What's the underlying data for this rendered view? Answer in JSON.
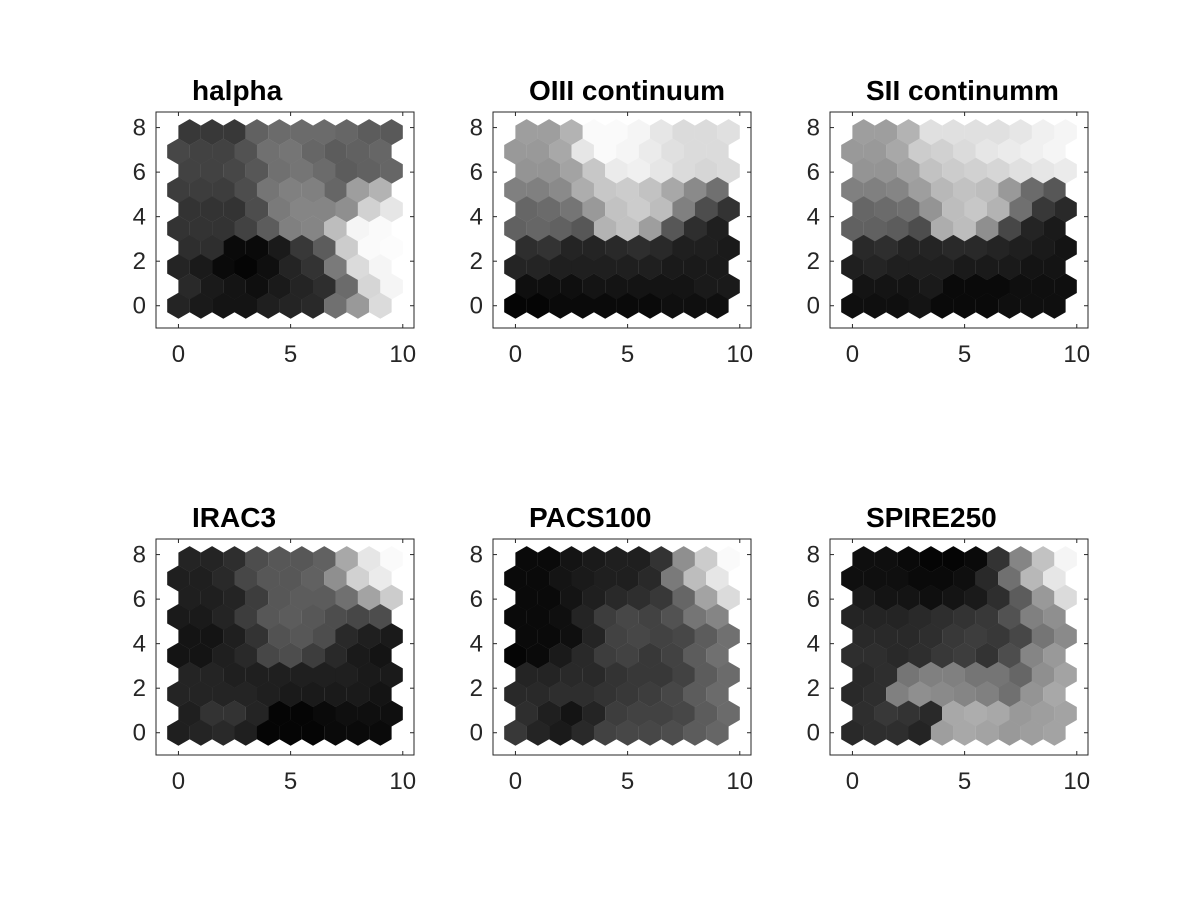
{
  "chart_data": [
    {
      "type": "heatmap",
      "title": "halpha",
      "xlabel": "",
      "ylabel": "",
      "xlim": [
        -1,
        10.5
      ],
      "ylim": [
        -1,
        8.7
      ],
      "x_ticks": [
        0,
        5,
        10
      ],
      "y_ticks": [
        0,
        2,
        4,
        6,
        8
      ],
      "grid": false,
      "cmap": "gray",
      "grid_shape": {
        "cols": 10,
        "rows": 10
      },
      "values": [
        [
          0.22,
          0.22,
          0.22,
          0.38,
          0.42,
          0.42,
          0.42,
          0.4,
          0.36,
          0.35
        ],
        [
          0.28,
          0.26,
          0.26,
          0.32,
          0.44,
          0.46,
          0.4,
          0.36,
          0.38,
          0.4
        ],
        [
          0.26,
          0.26,
          0.28,
          0.34,
          0.44,
          0.46,
          0.42,
          0.36,
          0.38,
          0.4
        ],
        [
          0.24,
          0.24,
          0.24,
          0.3,
          0.46,
          0.5,
          0.5,
          0.4,
          0.62,
          0.7
        ],
        [
          0.2,
          0.2,
          0.2,
          0.3,
          0.48,
          0.52,
          0.52,
          0.56,
          0.82,
          0.9
        ],
        [
          0.2,
          0.2,
          0.2,
          0.26,
          0.36,
          0.5,
          0.52,
          0.74,
          0.96,
          0.98
        ],
        [
          0.18,
          0.18,
          0.04,
          0.04,
          0.1,
          0.22,
          0.36,
          0.8,
          0.98,
          0.99
        ],
        [
          0.14,
          0.1,
          0.04,
          0.02,
          0.06,
          0.14,
          0.2,
          0.48,
          0.86,
          0.96
        ],
        [
          0.16,
          0.1,
          0.08,
          0.06,
          0.1,
          0.14,
          0.18,
          0.42,
          0.84,
          0.96
        ],
        [
          0.14,
          0.1,
          0.08,
          0.08,
          0.12,
          0.14,
          0.16,
          0.44,
          0.6,
          0.86
        ]
      ]
    },
    {
      "type": "heatmap",
      "title": "OIII continuum",
      "xlabel": "",
      "ylabel": "",
      "xlim": [
        -1,
        10.5
      ],
      "ylim": [
        -1,
        8.7
      ],
      "x_ticks": [
        0,
        5,
        10
      ],
      "y_ticks": [
        0,
        2,
        4,
        6,
        8
      ],
      "grid": false,
      "cmap": "gray",
      "grid_shape": {
        "cols": 10,
        "rows": 10
      },
      "values": [
        [
          0.62,
          0.62,
          0.7,
          0.98,
          0.98,
          0.96,
          0.9,
          0.86,
          0.86,
          0.88
        ],
        [
          0.6,
          0.6,
          0.66,
          0.9,
          0.98,
          0.96,
          0.92,
          0.88,
          0.86,
          0.86
        ],
        [
          0.58,
          0.58,
          0.64,
          0.78,
          0.92,
          0.94,
          0.9,
          0.86,
          0.84,
          0.86
        ],
        [
          0.5,
          0.5,
          0.54,
          0.68,
          0.78,
          0.8,
          0.76,
          0.66,
          0.54,
          0.44
        ],
        [
          0.4,
          0.42,
          0.46,
          0.6,
          0.76,
          0.8,
          0.74,
          0.5,
          0.3,
          0.2
        ],
        [
          0.38,
          0.4,
          0.38,
          0.34,
          0.7,
          0.76,
          0.62,
          0.34,
          0.18,
          0.12
        ],
        [
          0.18,
          0.2,
          0.14,
          0.14,
          0.16,
          0.18,
          0.16,
          0.12,
          0.12,
          0.1
        ],
        [
          0.14,
          0.14,
          0.12,
          0.12,
          0.12,
          0.12,
          0.12,
          0.1,
          0.1,
          0.1
        ],
        [
          0.06,
          0.06,
          0.06,
          0.08,
          0.08,
          0.08,
          0.08,
          0.08,
          0.1,
          0.1
        ],
        [
          0.02,
          0.02,
          0.04,
          0.04,
          0.04,
          0.04,
          0.04,
          0.06,
          0.06,
          0.06
        ]
      ]
    },
    {
      "type": "heatmap",
      "title": "SII continumm",
      "xlabel": "",
      "ylabel": "",
      "xlim": [
        -1,
        10.5
      ],
      "ylim": [
        -1,
        8.7
      ],
      "x_ticks": [
        0,
        5,
        10
      ],
      "y_ticks": [
        0,
        2,
        4,
        6,
        8
      ],
      "grid": false,
      "cmap": "gray",
      "grid_shape": {
        "cols": 10,
        "rows": 10
      },
      "values": [
        [
          0.62,
          0.62,
          0.7,
          0.88,
          0.88,
          0.88,
          0.88,
          0.9,
          0.94,
          0.96
        ],
        [
          0.6,
          0.6,
          0.66,
          0.8,
          0.82,
          0.86,
          0.9,
          0.92,
          0.94,
          0.96
        ],
        [
          0.58,
          0.58,
          0.64,
          0.76,
          0.8,
          0.82,
          0.84,
          0.88,
          0.9,
          0.92
        ],
        [
          0.5,
          0.5,
          0.52,
          0.62,
          0.72,
          0.76,
          0.74,
          0.6,
          0.42,
          0.34
        ],
        [
          0.4,
          0.42,
          0.44,
          0.58,
          0.74,
          0.78,
          0.7,
          0.44,
          0.22,
          0.16
        ],
        [
          0.38,
          0.38,
          0.36,
          0.3,
          0.68,
          0.74,
          0.56,
          0.28,
          0.14,
          0.1
        ],
        [
          0.16,
          0.18,
          0.14,
          0.14,
          0.16,
          0.16,
          0.14,
          0.12,
          0.1,
          0.08
        ],
        [
          0.12,
          0.14,
          0.12,
          0.12,
          0.12,
          0.1,
          0.1,
          0.1,
          0.08,
          0.08
        ],
        [
          0.08,
          0.08,
          0.08,
          0.1,
          0.04,
          0.04,
          0.04,
          0.06,
          0.06,
          0.06
        ],
        [
          0.06,
          0.06,
          0.06,
          0.08,
          0.04,
          0.04,
          0.04,
          0.06,
          0.06,
          0.06
        ]
      ]
    },
    {
      "type": "heatmap",
      "title": "IRAC3",
      "xlabel": "",
      "ylabel": "",
      "xlim": [
        -1,
        10.5
      ],
      "ylim": [
        -1,
        8.7
      ],
      "x_ticks": [
        0,
        5,
        10
      ],
      "y_ticks": [
        0,
        2,
        4,
        6,
        8
      ],
      "grid": false,
      "cmap": "gray",
      "grid_shape": {
        "cols": 10,
        "rows": 10
      },
      "values": [
        [
          0.14,
          0.14,
          0.18,
          0.3,
          0.34,
          0.34,
          0.38,
          0.66,
          0.9,
          0.98
        ],
        [
          0.12,
          0.12,
          0.16,
          0.28,
          0.34,
          0.34,
          0.38,
          0.56,
          0.82,
          0.92
        ],
        [
          0.12,
          0.12,
          0.14,
          0.24,
          0.34,
          0.36,
          0.36,
          0.44,
          0.64,
          0.8
        ],
        [
          0.1,
          0.1,
          0.14,
          0.24,
          0.34,
          0.36,
          0.34,
          0.3,
          0.28,
          0.3
        ],
        [
          0.08,
          0.08,
          0.12,
          0.2,
          0.32,
          0.34,
          0.3,
          0.16,
          0.12,
          0.1
        ],
        [
          0.08,
          0.08,
          0.12,
          0.16,
          0.28,
          0.3,
          0.24,
          0.16,
          0.1,
          0.08
        ],
        [
          0.14,
          0.14,
          0.12,
          0.12,
          0.12,
          0.12,
          0.12,
          0.12,
          0.1,
          0.1
        ],
        [
          0.14,
          0.14,
          0.14,
          0.14,
          0.12,
          0.1,
          0.1,
          0.1,
          0.1,
          0.08
        ],
        [
          0.12,
          0.2,
          0.2,
          0.14,
          0.02,
          0.02,
          0.04,
          0.06,
          0.06,
          0.06
        ],
        [
          0.12,
          0.14,
          0.16,
          0.12,
          0.02,
          0.02,
          0.02,
          0.04,
          0.04,
          0.04
        ]
      ]
    },
    {
      "type": "heatmap",
      "title": "PACS100",
      "xlabel": "",
      "ylabel": "",
      "xlim": [
        -1,
        10.5
      ],
      "ylim": [
        -1,
        8.7
      ],
      "x_ticks": [
        0,
        5,
        10
      ],
      "y_ticks": [
        0,
        2,
        4,
        6,
        8
      ],
      "grid": false,
      "cmap": "gray",
      "grid_shape": {
        "cols": 10,
        "rows": 10
      },
      "values": [
        [
          0.04,
          0.04,
          0.08,
          0.1,
          0.12,
          0.12,
          0.2,
          0.56,
          0.8,
          0.98
        ],
        [
          0.04,
          0.04,
          0.08,
          0.1,
          0.12,
          0.12,
          0.16,
          0.48,
          0.74,
          0.9
        ],
        [
          0.04,
          0.04,
          0.08,
          0.12,
          0.16,
          0.18,
          0.22,
          0.4,
          0.64,
          0.86
        ],
        [
          0.04,
          0.04,
          0.06,
          0.14,
          0.24,
          0.28,
          0.26,
          0.32,
          0.46,
          0.52
        ],
        [
          0.04,
          0.04,
          0.06,
          0.14,
          0.26,
          0.28,
          0.26,
          0.28,
          0.36,
          0.44
        ],
        [
          0.02,
          0.04,
          0.1,
          0.16,
          0.24,
          0.26,
          0.22,
          0.26,
          0.36,
          0.44
        ],
        [
          0.14,
          0.14,
          0.16,
          0.16,
          0.2,
          0.22,
          0.22,
          0.26,
          0.36,
          0.42
        ],
        [
          0.16,
          0.16,
          0.18,
          0.18,
          0.2,
          0.22,
          0.24,
          0.28,
          0.36,
          0.42
        ],
        [
          0.18,
          0.12,
          0.08,
          0.14,
          0.24,
          0.26,
          0.26,
          0.28,
          0.36,
          0.42
        ],
        [
          0.22,
          0.14,
          0.1,
          0.16,
          0.26,
          0.28,
          0.28,
          0.3,
          0.36,
          0.4
        ]
      ]
    },
    {
      "type": "heatmap",
      "title": "SPIRE250",
      "xlabel": "",
      "ylabel": "",
      "xlim": [
        -1,
        10.5
      ],
      "ylim": [
        -1,
        8.7
      ],
      "x_ticks": [
        0,
        5,
        10
      ],
      "y_ticks": [
        0,
        2,
        4,
        6,
        8
      ],
      "grid": false,
      "cmap": "gray",
      "grid_shape": {
        "cols": 10,
        "rows": 10
      },
      "values": [
        [
          0.06,
          0.06,
          0.04,
          0.02,
          0.02,
          0.04,
          0.2,
          0.52,
          0.76,
          0.96
        ],
        [
          0.06,
          0.06,
          0.06,
          0.04,
          0.04,
          0.06,
          0.16,
          0.44,
          0.72,
          0.9
        ],
        [
          0.1,
          0.08,
          0.08,
          0.06,
          0.08,
          0.1,
          0.18,
          0.36,
          0.6,
          0.86
        ],
        [
          0.14,
          0.14,
          0.14,
          0.16,
          0.18,
          0.2,
          0.22,
          0.32,
          0.5,
          0.56
        ],
        [
          0.16,
          0.16,
          0.16,
          0.18,
          0.22,
          0.24,
          0.22,
          0.28,
          0.46,
          0.54
        ],
        [
          0.18,
          0.18,
          0.16,
          0.18,
          0.22,
          0.24,
          0.2,
          0.3,
          0.52,
          0.6
        ],
        [
          0.16,
          0.18,
          0.46,
          0.5,
          0.5,
          0.46,
          0.46,
          0.4,
          0.56,
          0.64
        ],
        [
          0.16,
          0.18,
          0.5,
          0.56,
          0.54,
          0.52,
          0.5,
          0.44,
          0.58,
          0.66
        ],
        [
          0.18,
          0.22,
          0.2,
          0.16,
          0.66,
          0.68,
          0.66,
          0.6,
          0.62,
          0.64
        ],
        [
          0.16,
          0.18,
          0.18,
          0.14,
          0.62,
          0.66,
          0.64,
          0.6,
          0.62,
          0.64
        ]
      ]
    }
  ]
}
